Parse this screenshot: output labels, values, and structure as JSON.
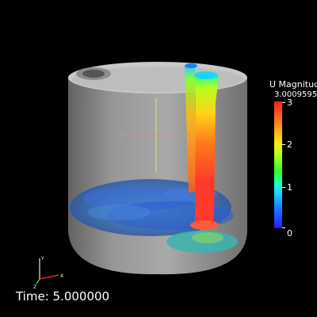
{
  "legend": {
    "title": "U Magnitude",
    "max_value": "3.0009595",
    "ticks": [
      "3",
      "2",
      "1",
      "0"
    ],
    "colors": [
      "#ff1a1a",
      "#ffe61a",
      "#2bff2b",
      "#1ad6ff",
      "#2b1aff"
    ]
  },
  "status": {
    "time": "Time: 5.000000"
  },
  "orientation_axes": {
    "x": "X",
    "y": "Y",
    "z": "Z"
  }
}
